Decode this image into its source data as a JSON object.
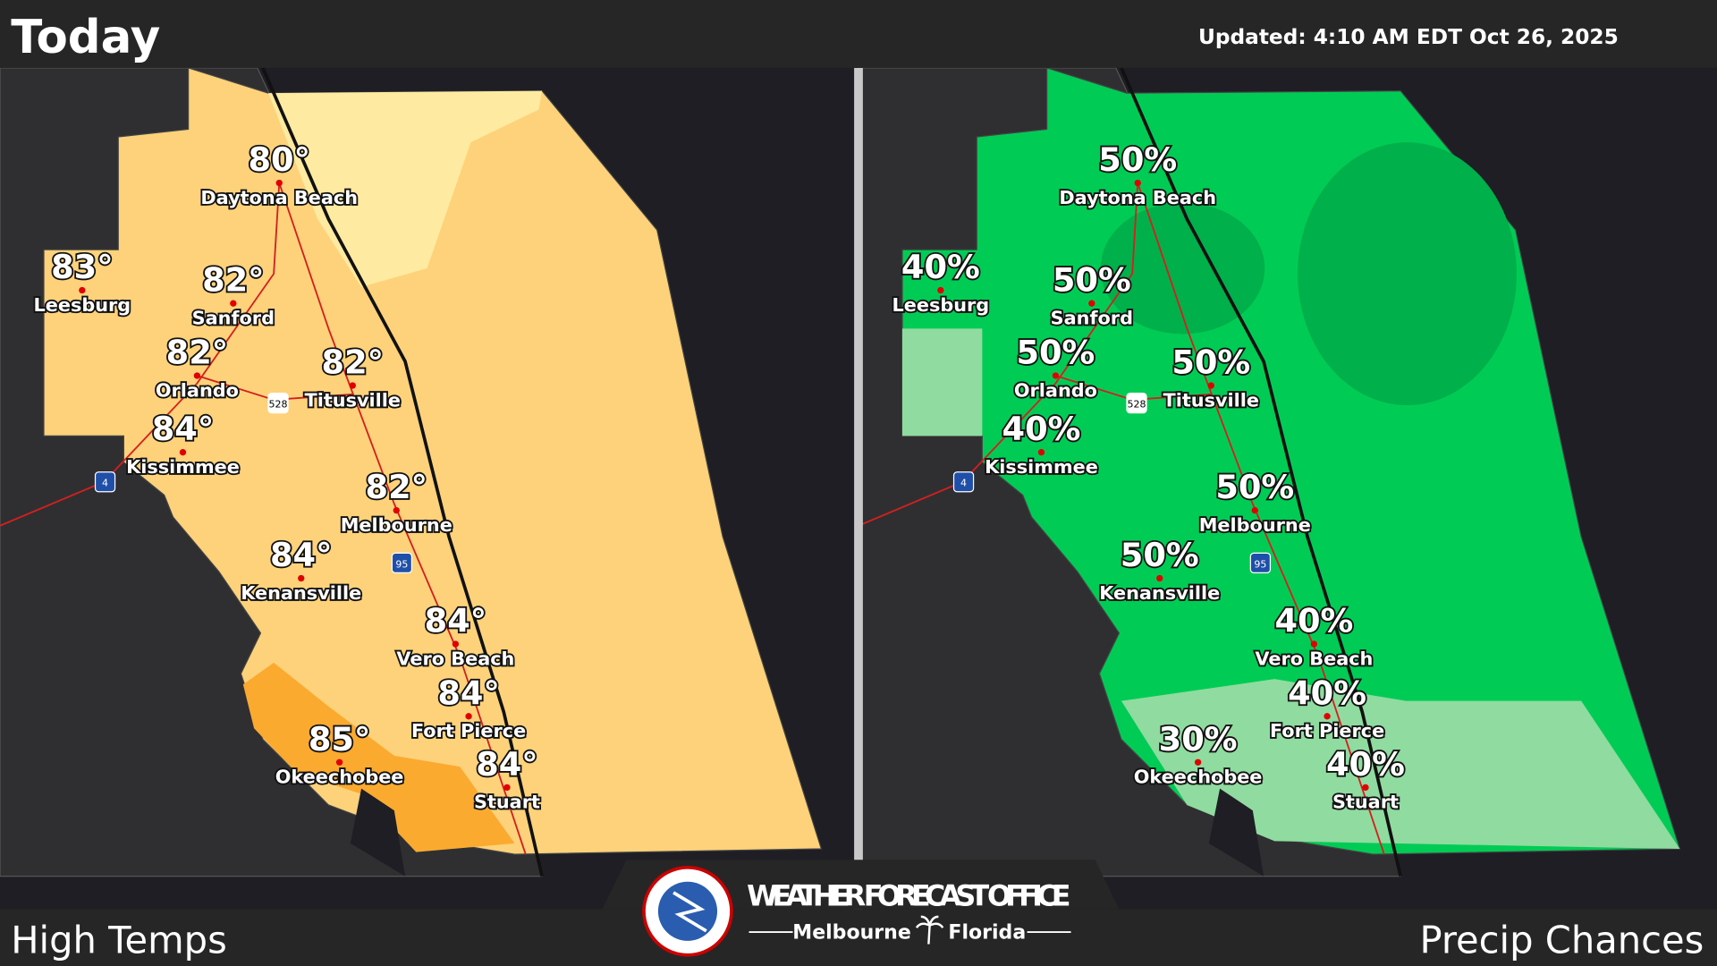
{
  "header": {
    "title": "Today",
    "updated": "Updated:  4:10 AM EDT Oct 26, 2025"
  },
  "panels": [
    {
      "label": "High Temps",
      "cities": [
        {
          "name": "Daytona Beach",
          "value": "80°"
        },
        {
          "name": "Leesburg",
          "value": "83°"
        },
        {
          "name": "Sanford",
          "value": "82°"
        },
        {
          "name": "Orlando",
          "value": "82°"
        },
        {
          "name": "Titusville",
          "value": "82°"
        },
        {
          "name": "Kissimmee",
          "value": "84°"
        },
        {
          "name": "Melbourne",
          "value": "82°"
        },
        {
          "name": "Kenansville",
          "value": "84°"
        },
        {
          "name": "Vero Beach",
          "value": "84°"
        },
        {
          "name": "Fort Pierce",
          "value": "84°"
        },
        {
          "name": "Okeechobee",
          "value": "85°"
        },
        {
          "name": "Stuart",
          "value": "84°"
        }
      ]
    },
    {
      "label": "Precip Chances",
      "cities": [
        {
          "name": "Daytona Beach",
          "value": "50%"
        },
        {
          "name": "Leesburg",
          "value": "40%"
        },
        {
          "name": "Sanford",
          "value": "50%"
        },
        {
          "name": "Orlando",
          "value": "50%"
        },
        {
          "name": "Titusville",
          "value": "50%"
        },
        {
          "name": "Kissimmee",
          "value": "40%"
        },
        {
          "name": "Melbourne",
          "value": "50%"
        },
        {
          "name": "Kenansville",
          "value": "50%"
        },
        {
          "name": "Vero Beach",
          "value": "40%"
        },
        {
          "name": "Fort Pierce",
          "value": "40%"
        },
        {
          "name": "Okeechobee",
          "value": "30%"
        },
        {
          "name": "Stuart",
          "value": "40%"
        }
      ]
    }
  ],
  "shields": [
    "4",
    "95",
    "528"
  ],
  "logo": {
    "office": "WEATHER FORECAST OFFICE",
    "city": "Melbourne",
    "state": "Florida"
  }
}
